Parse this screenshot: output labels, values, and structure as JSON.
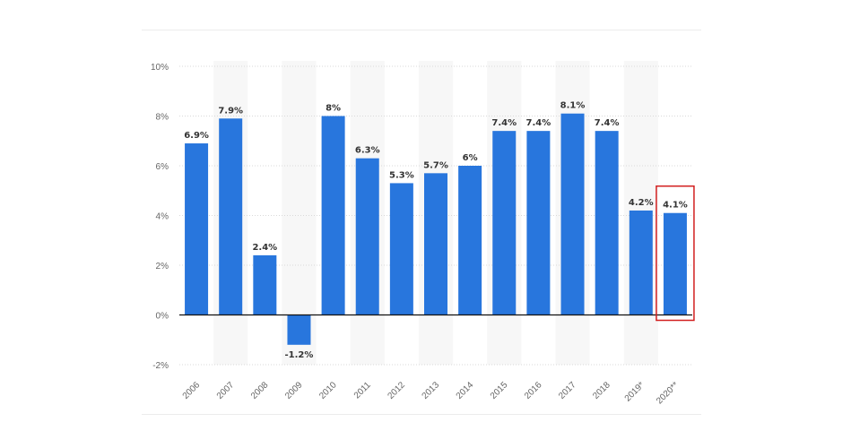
{
  "chart_data": {
    "type": "bar",
    "categories": [
      "2006",
      "2007",
      "2008",
      "2009",
      "2010",
      "2011",
      "2012",
      "2013",
      "2014",
      "2015",
      "2016",
      "2017",
      "2018",
      "2019*",
      "2020**"
    ],
    "values": [
      6.9,
      7.9,
      2.4,
      -1.2,
      8,
      6.3,
      5.3,
      5.7,
      6,
      7.4,
      7.4,
      8.1,
      7.4,
      4.2,
      4.1
    ],
    "data_labels": [
      "6.9%",
      "7.9%",
      "2.4%",
      "-1.2%",
      "8%",
      "6.3%",
      "5.3%",
      "5.7%",
      "6%",
      "7.4%",
      "7.4%",
      "8.1%",
      "7.4%",
      "4.2%",
      "4.1%"
    ],
    "y_ticks": [
      -2,
      0,
      2,
      4,
      6,
      8,
      10
    ],
    "y_tick_labels": [
      "-2%",
      "0%",
      "2%",
      "4%",
      "6%",
      "8%",
      "10%"
    ],
    "ylim": [
      -2,
      10
    ],
    "grid": true,
    "title": "",
    "xlabel": "",
    "ylabel": "",
    "colors": {
      "bar": "#2876dd",
      "highlight_box": "#d21f1f",
      "band": "#f7f7f7"
    },
    "highlighted_category": "2020**"
  }
}
